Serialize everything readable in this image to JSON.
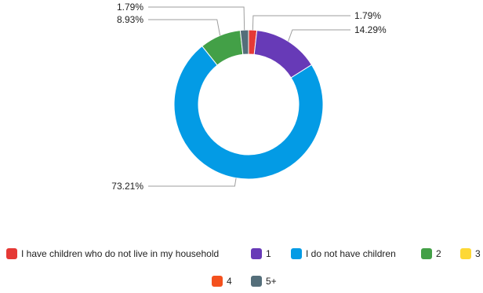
{
  "chart_data": {
    "type": "pie",
    "style": "donut",
    "slices": [
      {
        "label": "I have children who do not live in my household",
        "value": 1.79,
        "display": "1.79%",
        "color": "#e53935"
      },
      {
        "label": "1",
        "value": 14.29,
        "display": "14.29%",
        "color": "#673ab7"
      },
      {
        "label": "I do not have children",
        "value": 73.21,
        "display": "73.21%",
        "color": "#039be5"
      },
      {
        "label": "2",
        "value": 8.93,
        "display": "8.93%",
        "color": "#43a047"
      },
      {
        "label": "3",
        "value": 0,
        "display": "",
        "color": "#fdd835"
      },
      {
        "label": "4",
        "value": 0,
        "display": "",
        "color": "#f4511e"
      },
      {
        "label": "5+",
        "value": 1.79,
        "display": "1.79%",
        "color": "#546e7a"
      }
    ],
    "legend_position": "bottom"
  }
}
